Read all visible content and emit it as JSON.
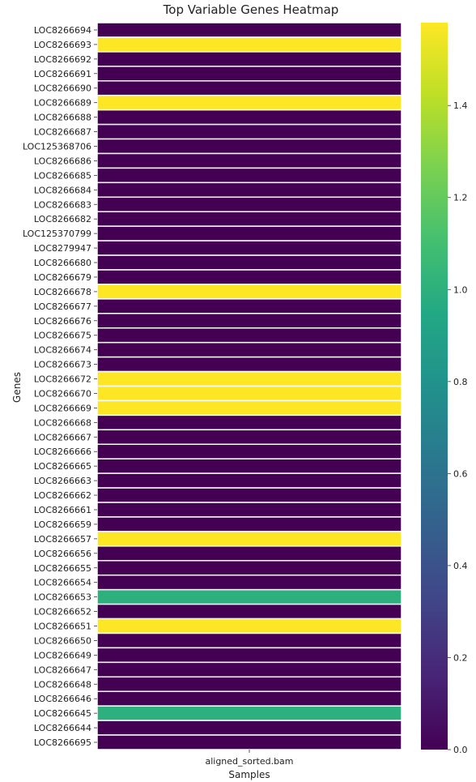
{
  "chart_data": {
    "type": "heatmap",
    "title": "Top Variable Genes Heatmap",
    "xlabel": "Samples",
    "ylabel": "Genes",
    "columns": [
      "aligned_sorted.bam"
    ],
    "rows": [
      {
        "gene": "LOC8266694",
        "value": 0.0
      },
      {
        "gene": "LOC8266693",
        "value": 1.58
      },
      {
        "gene": "LOC8266692",
        "value": 0.0
      },
      {
        "gene": "LOC8266691",
        "value": 0.0
      },
      {
        "gene": "LOC8266690",
        "value": 0.0
      },
      {
        "gene": "LOC8266689",
        "value": 1.58
      },
      {
        "gene": "LOC8266688",
        "value": 0.0
      },
      {
        "gene": "LOC8266687",
        "value": 0.0
      },
      {
        "gene": "LOC125368706",
        "value": 0.0
      },
      {
        "gene": "LOC8266686",
        "value": 0.0
      },
      {
        "gene": "LOC8266685",
        "value": 0.0
      },
      {
        "gene": "LOC8266684",
        "value": 0.0
      },
      {
        "gene": "LOC8266683",
        "value": 0.0
      },
      {
        "gene": "LOC8266682",
        "value": 0.0
      },
      {
        "gene": "LOC125370799",
        "value": 0.0
      },
      {
        "gene": "LOC8279947",
        "value": 0.0
      },
      {
        "gene": "LOC8266680",
        "value": 0.0
      },
      {
        "gene": "LOC8266679",
        "value": 0.0
      },
      {
        "gene": "LOC8266678",
        "value": 1.58
      },
      {
        "gene": "LOC8266677",
        "value": 0.0
      },
      {
        "gene": "LOC8266676",
        "value": 0.0
      },
      {
        "gene": "LOC8266675",
        "value": 0.0
      },
      {
        "gene": "LOC8266674",
        "value": 0.0
      },
      {
        "gene": "LOC8266673",
        "value": 0.0
      },
      {
        "gene": "LOC8266672",
        "value": 1.58
      },
      {
        "gene": "LOC8266670",
        "value": 1.58
      },
      {
        "gene": "LOC8266669",
        "value": 1.58
      },
      {
        "gene": "LOC8266668",
        "value": 0.0
      },
      {
        "gene": "LOC8266667",
        "value": 0.0
      },
      {
        "gene": "LOC8266666",
        "value": 0.0
      },
      {
        "gene": "LOC8266665",
        "value": 0.0
      },
      {
        "gene": "LOC8266663",
        "value": 0.0
      },
      {
        "gene": "LOC8266662",
        "value": 0.0
      },
      {
        "gene": "LOC8266661",
        "value": 0.0
      },
      {
        "gene": "LOC8266659",
        "value": 0.0
      },
      {
        "gene": "LOC8266657",
        "value": 1.58
      },
      {
        "gene": "LOC8266656",
        "value": 0.0
      },
      {
        "gene": "LOC8266655",
        "value": 0.0
      },
      {
        "gene": "LOC8266654",
        "value": 0.0
      },
      {
        "gene": "LOC8266653",
        "value": 1.0
      },
      {
        "gene": "LOC8266652",
        "value": 0.0
      },
      {
        "gene": "LOC8266651",
        "value": 1.58
      },
      {
        "gene": "LOC8266650",
        "value": 0.0
      },
      {
        "gene": "LOC8266649",
        "value": 0.0
      },
      {
        "gene": "LOC8266647",
        "value": 0.0
      },
      {
        "gene": "LOC8266648",
        "value": 0.0
      },
      {
        "gene": "LOC8266646",
        "value": 0.0
      },
      {
        "gene": "LOC8266645",
        "value": 1.0
      },
      {
        "gene": "LOC8266644",
        "value": 0.0
      },
      {
        "gene": "LOC8266695",
        "value": 0.0
      }
    ],
    "colorbar": {
      "colormap": "viridis",
      "range": [
        0.0,
        1.58
      ],
      "ticks": [
        0.0,
        0.2,
        0.4,
        0.6,
        0.8,
        1.0,
        1.2,
        1.4
      ],
      "tick_labels": [
        "0.0",
        "0.2",
        "0.4",
        "0.6",
        "0.8",
        "1.0",
        "1.2",
        "1.4"
      ]
    },
    "grid": false,
    "cell_separator_color": "#ffffff"
  }
}
